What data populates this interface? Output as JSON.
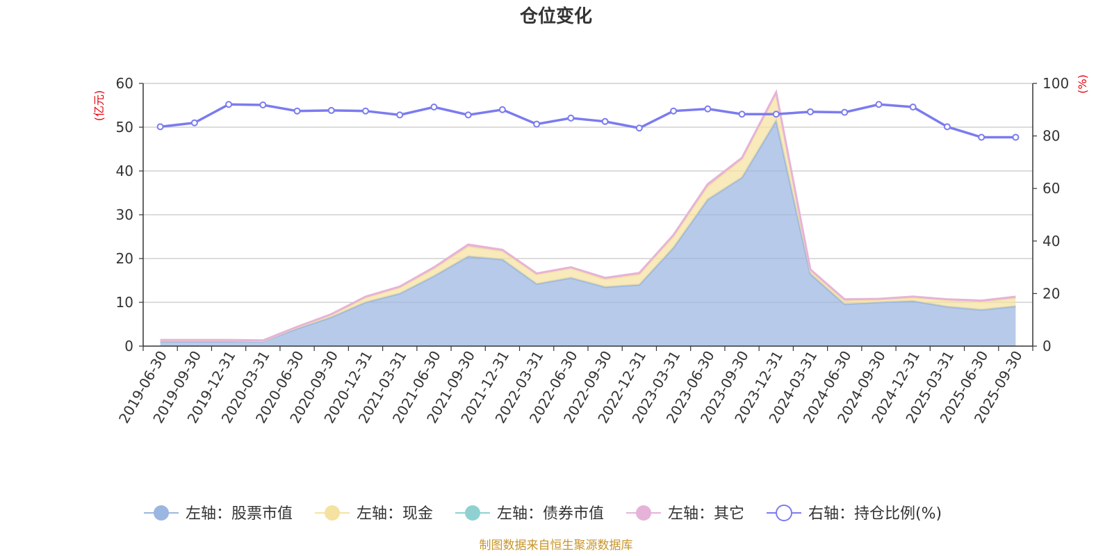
{
  "chart_data": {
    "type": "area",
    "title": "仓位变化",
    "left_axis_unit": "(亿元)",
    "right_axis_unit": "(%)",
    "ylim_left": [
      0,
      60
    ],
    "yticks_left": [
      0,
      10,
      20,
      30,
      40,
      50,
      60
    ],
    "ylim_right": [
      0,
      100
    ],
    "yticks_right": [
      0,
      20,
      40,
      60,
      80,
      100
    ],
    "categories": [
      "2019-06-30",
      "2019-09-30",
      "2019-12-31",
      "2020-03-31",
      "2020-06-30",
      "2020-09-30",
      "2020-12-31",
      "2021-03-31",
      "2021-06-30",
      "2021-09-30",
      "2021-12-31",
      "2022-03-31",
      "2022-06-30",
      "2022-09-30",
      "2022-12-31",
      "2023-03-31",
      "2023-06-30",
      "2023-09-30",
      "2023-12-31",
      "2024-03-31",
      "2024-06-30",
      "2024-09-30",
      "2024-12-31",
      "2025-03-31",
      "2025-06-30",
      "2025-09-30"
    ],
    "series": [
      {
        "name": "左轴：股票市值",
        "axis": "left",
        "kind": "stacked-area",
        "color": "#9bb6e0",
        "values": [
          1.1,
          1.1,
          1.1,
          1.1,
          4.0,
          6.6,
          10.0,
          12.0,
          16.0,
          20.5,
          19.8,
          14.2,
          15.6,
          13.5,
          14.0,
          22.5,
          33.5,
          38.5,
          51.5,
          16.5,
          9.6,
          10.0,
          10.3,
          9.0,
          8.3,
          9.1
        ]
      },
      {
        "name": "左轴：现金",
        "axis": "left",
        "kind": "stacked-area",
        "color": "#f5e2a0",
        "values": [
          0.2,
          0.2,
          0.2,
          0.1,
          0.3,
          0.6,
          1.1,
          1.4,
          1.7,
          2.3,
          1.9,
          2.2,
          2.2,
          1.8,
          2.4,
          2.6,
          3.0,
          4.2,
          6.2,
          0.7,
          0.8,
          0.6,
          0.8,
          1.5,
          1.8,
          1.9
        ]
      },
      {
        "name": "左轴：债券市值",
        "axis": "left",
        "kind": "stacked-area",
        "color": "#8fd1d1",
        "values": [
          0,
          0,
          0,
          0,
          0,
          0,
          0,
          0,
          0,
          0,
          0,
          0,
          0,
          0,
          0,
          0,
          0,
          0,
          0,
          0,
          0,
          0,
          0,
          0,
          0,
          0
        ]
      },
      {
        "name": "左轴：其它",
        "axis": "left",
        "kind": "stacked-area",
        "color": "#e6b3d8",
        "values": [
          0.1,
          0.1,
          0.1,
          0.1,
          0.1,
          0.1,
          0.2,
          0.2,
          0.3,
          0.4,
          0.3,
          0.2,
          0.2,
          0.3,
          0.3,
          0.3,
          0.5,
          0.3,
          0.3,
          0.3,
          0.3,
          0.2,
          0.2,
          0.2,
          0.3,
          0.3
        ]
      },
      {
        "name": "右轴：持仓比例(%)",
        "axis": "right",
        "kind": "line",
        "color": "#7b7bf0",
        "values": [
          83.5,
          85,
          92,
          91.8,
          89.5,
          89.7,
          89.5,
          88,
          91,
          88,
          90,
          84.5,
          86.8,
          85.5,
          83,
          89.5,
          90.3,
          88.3,
          88.3,
          89.2,
          89,
          92,
          91,
          83.5,
          79.5,
          79.5
        ]
      }
    ]
  },
  "footer": {
    "source": "制图数据来自恒生聚源数据库"
  },
  "colors": {
    "grid": "#c8c8c8",
    "axis": "#333333",
    "unit": "#e8000b"
  }
}
